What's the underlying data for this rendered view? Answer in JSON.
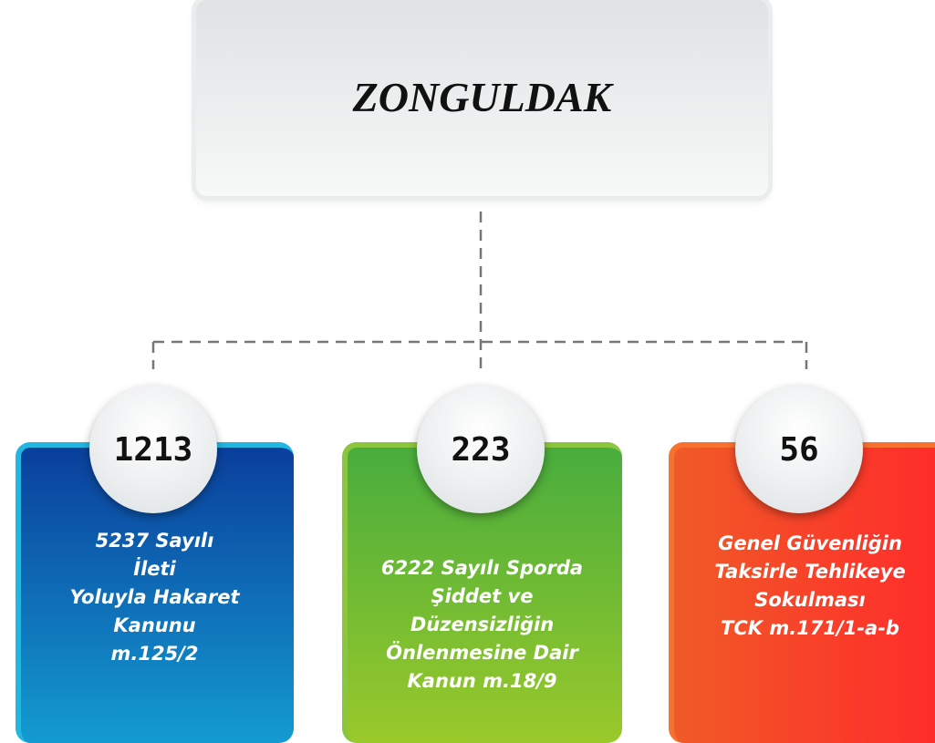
{
  "title": "ZONGULDAK",
  "nodes": [
    {
      "count": "1213",
      "label": [
        "5237 Sayılı",
        "İleti",
        "Yoluyla Hakaret",
        "Kanunu",
        "m.125/2"
      ]
    },
    {
      "count": "223",
      "label": [
        "6222 Sayılı Sporda",
        "Şiddet ve",
        "Düzensizliğin",
        "Önlenmesine Dair",
        "Kanun m.18/9"
      ]
    },
    {
      "count": "56",
      "label": [
        "Genel Güvenliğin",
        "Taksirle Tehlikeye",
        "Sokulması",
        "TCK m.171/1-a-b"
      ]
    }
  ]
}
